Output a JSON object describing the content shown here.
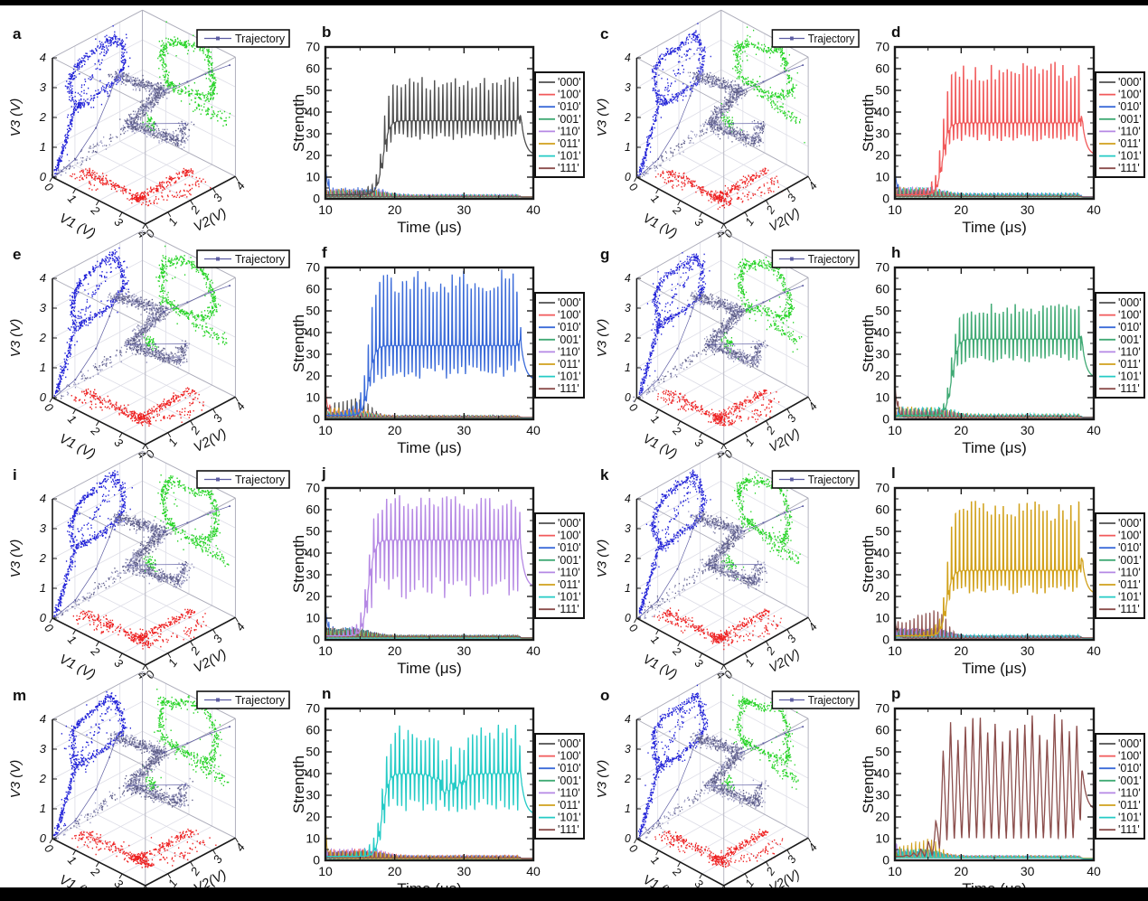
{
  "figure": {
    "background": "#ffffff",
    "border_bar_color": "#000000"
  },
  "axes3d": {
    "x_label": "V1 (V)",
    "y_label": "V2(V)",
    "z_label": "V3 (V)",
    "ticks": [
      0,
      1,
      2,
      3,
      4
    ],
    "axis_range": [
      0,
      4
    ],
    "legend_label": "Trajectory",
    "colors": {
      "v2_v3_wall_projection": "#2324d8",
      "v1_v3_wall_projection": "#27d427",
      "v1_v2_floor_projection": "#ee2222",
      "trajectory_light": "#9b9bc2",
      "trajectory_dark": "#5a5a84",
      "trajectory_line": "#5c5ca2",
      "grid": "#dcdce6",
      "box_edge": "#ababb8",
      "axis": "#1a1a1a"
    }
  },
  "strength_axes": {
    "x_label": "Time (μs)",
    "y_label": "Strength",
    "x_range": [
      10,
      40
    ],
    "y_range": [
      0,
      70
    ],
    "x_ticks": [
      10,
      20,
      30,
      40
    ],
    "y_ticks": [
      0,
      10,
      20,
      30,
      40,
      50,
      60,
      70
    ],
    "frame_color": "#1a1a1a",
    "legend": [
      {
        "key": "'000'",
        "color": "#4f4f4f"
      },
      {
        "key": "'100'",
        "color": "#f1595a"
      },
      {
        "key": "'010'",
        "color": "#3b6bd9"
      },
      {
        "key": "'001'",
        "color": "#41aa75"
      },
      {
        "key": "'110'",
        "color": "#b588e4"
      },
      {
        "key": "'011'",
        "color": "#d1a11b"
      },
      {
        "key": "'101'",
        "color": "#25cbc6"
      },
      {
        "key": "'111'",
        "color": "#8b4d4b"
      }
    ]
  },
  "chart_data": [
    {
      "panel": "a",
      "type": "scatter3d",
      "seed": 3
    },
    {
      "panel": "b",
      "type": "line",
      "wave": "spike",
      "dominant": "'000'",
      "onset_us": 18.3,
      "period_us": 0.6,
      "plateau": 36,
      "spike_max": 55,
      "spike_min": 28,
      "pre_spike_max": 6,
      "drop_us": 38.1,
      "end_value": 20,
      "start_transient": {
        "series": "'010'",
        "peak": 15
      },
      "seed": 21
    },
    {
      "panel": "c",
      "type": "scatter3d",
      "seed": 4
    },
    {
      "panel": "d",
      "type": "line",
      "wave": "spike",
      "dominant": "'100'",
      "onset_us": 17.2,
      "period_us": 0.6,
      "plateau": 35,
      "spike_max": 61,
      "spike_min": 27,
      "pre_spike_max": 8,
      "drop_us": 38.1,
      "end_value": 20,
      "start_transient": {
        "series": "'010'",
        "peak": 12
      },
      "seed": 22
    },
    {
      "panel": "e",
      "type": "scatter3d",
      "seed": 5
    },
    {
      "panel": "f",
      "type": "line",
      "wave": "spike",
      "dominant": "'010'",
      "onset_us": 16.3,
      "period_us": 0.55,
      "plateau": 34,
      "spike_max": 66,
      "spike_min": 20,
      "pre_spike_max": 12,
      "drop_us": 38.1,
      "end_value": 18,
      "start_transient": {
        "series": "'100'",
        "peak": 13
      },
      "secondary_early": {
        "series": "'000'",
        "peak": 7
      },
      "seed": 23
    },
    {
      "panel": "g",
      "type": "scatter3d",
      "seed": 6
    },
    {
      "panel": "h",
      "type": "line",
      "wave": "spike",
      "dominant": "'001'",
      "onset_us": 18.6,
      "period_us": 0.6,
      "plateau": 37,
      "spike_max": 52,
      "spike_min": 27,
      "pre_spike_max": 5,
      "drop_us": 38.1,
      "end_value": 19,
      "start_transient": {
        "series": "'111'",
        "peak": 16
      },
      "seed": 24
    },
    {
      "panel": "i",
      "type": "scatter3d",
      "seed": 7
    },
    {
      "panel": "j",
      "type": "line",
      "wave": "spike",
      "dominant": "'110'",
      "onset_us": 16.2,
      "period_us": 0.62,
      "plateau": 46,
      "spike_max": 65,
      "spike_min": 21,
      "pre_spike_max": 10,
      "drop_us": 38.1,
      "end_value": 24,
      "start_transient": {
        "series": "'010'",
        "peak": 14
      },
      "seed": 25
    },
    {
      "panel": "k",
      "type": "scatter3d",
      "seed": 8
    },
    {
      "panel": "l",
      "type": "line",
      "wave": "spike",
      "dominant": "'011'",
      "onset_us": 17.8,
      "period_us": 0.6,
      "plateau": 32,
      "spike_max": 62,
      "spike_min": 22,
      "pre_spike_max": 6,
      "drop_us": 38.1,
      "end_value": 21,
      "start_transient": {
        "series": "'111'",
        "peak": 9
      },
      "secondary_early": {
        "series": "'111'",
        "peak": 12
      },
      "seed": 26
    },
    {
      "panel": "m",
      "type": "scatter3d",
      "seed": 9
    },
    {
      "panel": "n",
      "type": "line",
      "wave": "spike",
      "dominant": "'101'",
      "onset_us": 18.2,
      "period_us": 0.62,
      "plateau": 40,
      "spike_max": 61,
      "spike_min": 24,
      "pre_spike_max": 7,
      "drop_us": 38.1,
      "end_value": 21,
      "mid_dip_us": 27.8,
      "start_transient": {
        "series": "'011'",
        "peak": 10
      },
      "seed": 27
    },
    {
      "panel": "o",
      "type": "scatter3d",
      "seed": 10
    },
    {
      "panel": "p",
      "type": "line",
      "wave": "triangle",
      "dominant": "'111'",
      "onset_us": 16.8,
      "period_us": 1.12,
      "plateau": 38,
      "spike_max": 65,
      "spike_min": 10,
      "pre_spike_max": 11,
      "drop_us": 38.1,
      "end_value": 23,
      "start_transient": {
        "series": "'110'",
        "peak": 7
      },
      "secondary_early": {
        "series": "'011'",
        "peak": 7
      },
      "seed": 28
    }
  ]
}
